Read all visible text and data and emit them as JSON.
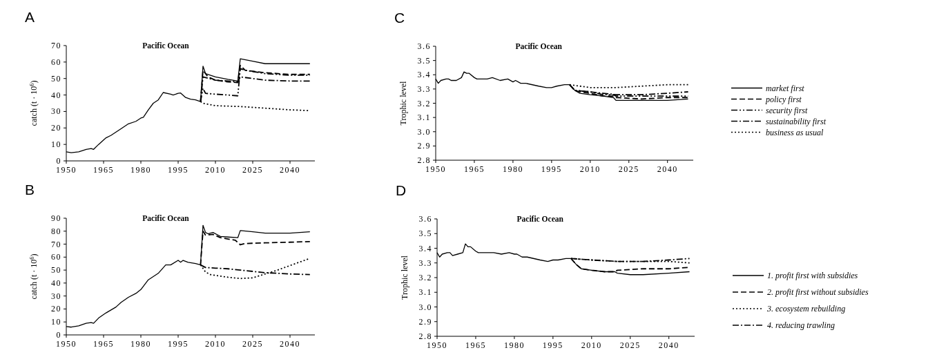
{
  "chart_data": [
    {
      "type": "line",
      "title": "Pacific Ocean",
      "ylabel": "catch (t · 10$^{6}$)",
      "annotations": [
        "A"
      ],
      "xlim": [
        1950,
        2050
      ],
      "xticks": [
        1950,
        1965,
        1980,
        1995,
        2010,
        2025,
        2040
      ],
      "ylim": [
        0,
        70
      ],
      "yticks": [
        0,
        10,
        20,
        30,
        40,
        50,
        60,
        70
      ],
      "series": [
        {
          "color": "#000000",
          "line_style": "solid",
          "x": [
            1950,
            1952,
            1955,
            1958,
            1960,
            1961,
            1963,
            1966,
            1968,
            1970,
            1972,
            1975,
            1978,
            1980,
            1981,
            1983,
            1985,
            1987,
            1989,
            1992,
            1993,
            1995,
            1996,
            1998,
            2000,
            2002,
            2004
          ],
          "values": [
            5.5,
            5,
            5.5,
            7,
            7.5,
            7,
            10,
            14,
            15.5,
            17.5,
            19.5,
            22.5,
            24,
            26,
            26.5,
            31,
            35,
            37,
            41.5,
            40.5,
            40,
            41,
            41.2,
            38.5,
            37.5,
            37,
            36
          ]
        },
        {
          "color": "#000000",
          "line_style": "solid",
          "x": [
            2004,
            2005,
            2006,
            2010,
            2015,
            2019,
            2020,
            2025,
            2030,
            2040,
            2048
          ],
          "values": [
            36,
            57.5,
            53,
            51,
            49.5,
            48.5,
            62,
            60.5,
            59,
            59,
            59
          ]
        },
        {
          "color": "#000000",
          "line_style": "dashed",
          "x": [
            2004,
            2005,
            2007,
            2010,
            2015,
            2019,
            2020,
            2022,
            2030,
            2040,
            2048
          ],
          "values": [
            36,
            55,
            51,
            49,
            48,
            47.5,
            58,
            55,
            53.5,
            52.5,
            52.5
          ]
        },
        {
          "color": "#000000",
          "line_style": "dashdotdot",
          "x": [
            2004,
            2005,
            2006,
            2010,
            2015,
            2019,
            2020,
            2022,
            2030,
            2040,
            2048
          ],
          "values": [
            36,
            44,
            41,
            40.5,
            40,
            39.5,
            56,
            55,
            53,
            52,
            52
          ]
        },
        {
          "color": "#000000",
          "line_style": "dashdot",
          "x": [
            2004,
            2005,
            2010,
            2015,
            2019,
            2020,
            2025,
            2030,
            2040,
            2048
          ],
          "values": [
            36,
            51,
            49,
            48.5,
            48,
            51,
            50,
            49,
            48.5,
            48.5
          ]
        },
        {
          "color": "#000000",
          "line_style": "dotted",
          "x": [
            2004,
            2005,
            2010,
            2020,
            2030,
            2040,
            2048
          ],
          "values": [
            36,
            35,
            33.5,
            33,
            32,
            31,
            30.5
          ]
        }
      ]
    },
    {
      "type": "line",
      "title": "Pacific Ocean",
      "ylabel": "catch (t · 10$^{6}$)",
      "annotations": [
        "B"
      ],
      "xlim": [
        1950,
        2050
      ],
      "xticks": [
        1950,
        1965,
        1980,
        1995,
        2010,
        2025,
        2040
      ],
      "ylim": [
        0,
        90
      ],
      "yticks": [
        0,
        10,
        20,
        30,
        40,
        50,
        60,
        70,
        80,
        90
      ],
      "series": [
        {
          "color": "#000000",
          "line_style": "solid",
          "x": [
            1950,
            1952,
            1955,
            1958,
            1960,
            1961,
            1963,
            1966,
            1970,
            1972,
            1975,
            1978,
            1980,
            1983,
            1985,
            1987,
            1990,
            1992,
            1995,
            1996,
            1997,
            1999,
            2002,
            2004
          ],
          "values": [
            6.5,
            6,
            7,
            9,
            9.5,
            9,
            13,
            17,
            21.5,
            25,
            29,
            32,
            35,
            42.5,
            45,
            47.5,
            54,
            54,
            57.5,
            56,
            57.5,
            56,
            55,
            54
          ]
        },
        {
          "color": "#000000",
          "line_style": "solid",
          "x": [
            2004,
            2005,
            2006,
            2007,
            2009,
            2012,
            2015,
            2019,
            2020,
            2025,
            2030,
            2040,
            2048
          ],
          "values": [
            54,
            84.5,
            79,
            78,
            79,
            76,
            75.5,
            75,
            80.5,
            79.5,
            78.5,
            78.5,
            79.5
          ]
        },
        {
          "color": "#000000",
          "line_style": "dashed",
          "x": [
            2004,
            2005,
            2006,
            2009,
            2012,
            2018,
            2020,
            2022,
            2030,
            2040,
            2048
          ],
          "values": [
            54,
            80,
            77,
            77.5,
            75,
            73,
            69.5,
            70.5,
            71,
            71.5,
            72
          ]
        },
        {
          "color": "#000000",
          "line_style": "dotted",
          "x": [
            2004,
            2006,
            2008,
            2015,
            2020,
            2025,
            2030,
            2035,
            2040,
            2048
          ],
          "values": [
            54,
            48.5,
            46.5,
            44.5,
            43.5,
            44,
            47,
            50,
            53.5,
            59
          ]
        },
        {
          "color": "#000000",
          "line_style": "dashdot",
          "x": [
            2004,
            2006,
            2010,
            2015,
            2020,
            2025,
            2030,
            2040,
            2048
          ],
          "values": [
            54,
            52,
            51.5,
            51,
            50,
            49,
            48,
            47,
            46.5
          ]
        }
      ]
    },
    {
      "type": "line",
      "title": "Pacific Ocean",
      "ylabel": "Trophic level",
      "annotations": [
        "C"
      ],
      "legend": "right",
      "xlim": [
        1950,
        2050
      ],
      "xticks": [
        1950,
        1965,
        1980,
        1995,
        2010,
        2025,
        2040
      ],
      "ylim": [
        2.8,
        3.6
      ],
      "yticks": [
        2.8,
        2.9,
        {
          "value": 3,
          "label": "3.0"
        },
        3.1,
        3.2,
        3.3,
        3.4,
        3.5,
        3.6
      ],
      "series": [
        {
          "color": "#000000",
          "line_style": "solid",
          "x": [
            1950,
            1951,
            1952,
            1954,
            1955,
            1956,
            1958,
            1960,
            1961,
            1962,
            1963,
            1965,
            1966,
            1970,
            1972,
            1975,
            1978,
            1980,
            1981,
            1983,
            1985,
            1990,
            1993,
            1995,
            1997,
            2000,
            2002
          ],
          "values": [
            3.37,
            3.34,
            3.36,
            3.37,
            3.37,
            3.36,
            3.36,
            3.38,
            3.42,
            3.41,
            3.41,
            3.38,
            3.37,
            3.37,
            3.38,
            3.36,
            3.37,
            3.35,
            3.36,
            3.34,
            3.34,
            3.32,
            3.31,
            3.31,
            3.32,
            3.33,
            3.33
          ]
        },
        {
          "name": "market first",
          "color": "#000000",
          "line_style": "solid",
          "x": [
            2002,
            2004,
            2006,
            2010,
            2015,
            2019,
            2020,
            2030,
            2040,
            2048
          ],
          "values": [
            3.33,
            3.29,
            3.27,
            3.26,
            3.25,
            3.24,
            3.22,
            3.22,
            3.22,
            3.23
          ]
        },
        {
          "name": "policy first",
          "color": "#000000",
          "line_style": "dashed",
          "x": [
            2002,
            2004,
            2006,
            2010,
            2015,
            2019,
            2020,
            2030,
            2040,
            2048
          ],
          "values": [
            3.33,
            3.29,
            3.28,
            3.27,
            3.25,
            3.25,
            3.24,
            3.23,
            3.24,
            3.24
          ]
        },
        {
          "name": "security first",
          "color": "#000000",
          "line_style": "dashdotdot",
          "x": [
            2002,
            2004,
            2010,
            2015,
            2019,
            2020,
            2030,
            2040,
            2048
          ],
          "values": [
            3.33,
            3.29,
            3.28,
            3.26,
            3.26,
            3.25,
            3.25,
            3.25,
            3.25
          ]
        },
        {
          "name": "sustainability first",
          "color": "#000000",
          "line_style": "dashdot",
          "x": [
            2002,
            2004,
            2010,
            2015,
            2020,
            2030,
            2040,
            2048
          ],
          "values": [
            3.33,
            3.29,
            3.28,
            3.27,
            3.26,
            3.26,
            3.27,
            3.28
          ]
        },
        {
          "name": "business as usual",
          "color": "#000000",
          "line_style": "dotted",
          "x": [
            2002,
            2006,
            2010,
            2020,
            2030,
            2040,
            2048
          ],
          "values": [
            3.33,
            3.32,
            3.31,
            3.31,
            3.32,
            3.33,
            3.33
          ]
        }
      ]
    },
    {
      "type": "line",
      "title": "Pacific Ocean",
      "ylabel": "Trophic level",
      "annotations": [
        "D"
      ],
      "legend": "right",
      "xlim": [
        1950,
        2050
      ],
      "xticks": [
        1950,
        1965,
        1980,
        1995,
        2010,
        2025,
        2040
      ],
      "ylim": [
        2.8,
        3.6
      ],
      "yticks": [
        2.8,
        2.9,
        {
          "value": 3,
          "label": "3.0"
        },
        3.1,
        3.2,
        3.3,
        3.4,
        3.5,
        3.6
      ],
      "series": [
        {
          "color": "#000000",
          "line_style": "solid",
          "x": [
            1950,
            1951,
            1952,
            1954,
            1955,
            1956,
            1958,
            1960,
            1961,
            1962,
            1963,
            1965,
            1966,
            1970,
            1972,
            1975,
            1978,
            1980,
            1981,
            1983,
            1985,
            1990,
            1993,
            1995,
            1997,
            2000,
            2002
          ],
          "values": [
            3.37,
            3.34,
            3.36,
            3.37,
            3.37,
            3.35,
            3.36,
            3.37,
            3.43,
            3.41,
            3.41,
            3.38,
            3.37,
            3.37,
            3.37,
            3.36,
            3.37,
            3.36,
            3.36,
            3.34,
            3.34,
            3.32,
            3.31,
            3.32,
            3.32,
            3.33,
            3.33
          ]
        },
        {
          "name": "1. profit first with subsidies",
          "color": "#000000",
          "line_style": "solid",
          "x": [
            2002,
            2004,
            2006,
            2010,
            2015,
            2019,
            2020,
            2025,
            2030,
            2040,
            2048
          ],
          "values": [
            3.33,
            3.29,
            3.26,
            3.25,
            3.24,
            3.24,
            3.23,
            3.22,
            3.22,
            3.23,
            3.24
          ]
        },
        {
          "name": "2. profit first without subsidies",
          "color": "#000000",
          "line_style": "dashed",
          "x": [
            2002,
            2004,
            2006,
            2010,
            2015,
            2019,
            2020,
            2030,
            2040,
            2048
          ],
          "values": [
            3.33,
            3.29,
            3.26,
            3.25,
            3.24,
            3.24,
            3.25,
            3.26,
            3.26,
            3.27
          ]
        },
        {
          "name": "3. ecosystem rebuilding",
          "color": "#000000",
          "line_style": "dotted",
          "x": [
            2002,
            2010,
            2020,
            2030,
            2040,
            2048
          ],
          "values": [
            3.33,
            3.32,
            3.31,
            3.31,
            3.31,
            3.3
          ]
        },
        {
          "name": "4. reducing trawling",
          "color": "#000000",
          "line_style": "dashdot",
          "x": [
            2002,
            2010,
            2020,
            2030,
            2040,
            2048
          ],
          "values": [
            3.33,
            3.32,
            3.31,
            3.31,
            3.32,
            3.33
          ]
        }
      ]
    }
  ]
}
